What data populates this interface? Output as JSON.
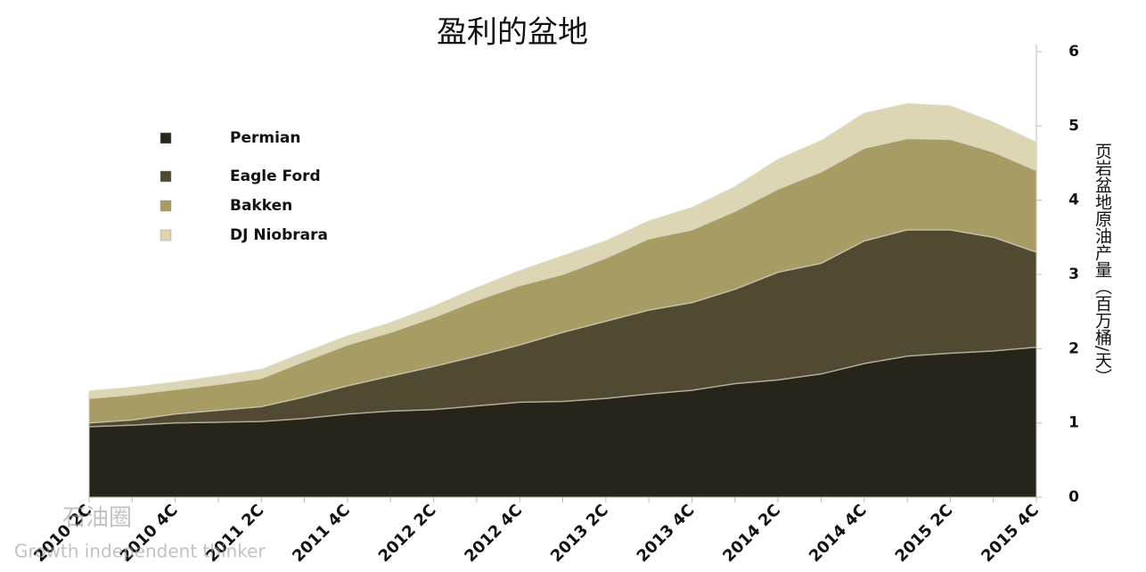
{
  "chart_data": {
    "type": "stacked_area",
    "title": "盈利的盆地",
    "y_axis_label": "页岩盆地原油产量（百万桶/天）",
    "categories": [
      "2010 2C",
      null,
      "2010 4C",
      null,
      "2011 2C",
      null,
      "2011 4C",
      null,
      "2012 2C",
      null,
      "2012 4C",
      null,
      "2013 2C",
      null,
      "2013 4C",
      null,
      "2014 2C",
      null,
      "2014 4C",
      null,
      "2015 2C",
      null,
      "2015 4C"
    ],
    "series": [
      {
        "name": "Permian",
        "color": "#27241a",
        "values": [
          0.95,
          0.97,
          1.0,
          1.01,
          1.02,
          1.06,
          1.12,
          1.16,
          1.18,
          1.23,
          1.28,
          1.29,
          1.33,
          1.39,
          1.44,
          1.53,
          1.58,
          1.66,
          1.8,
          1.9,
          1.94,
          1.97,
          2.02
        ]
      },
      {
        "name": "Eagle Ford",
        "color": "#504a33",
        "values": [
          0.05,
          0.07,
          0.12,
          0.16,
          0.2,
          0.29,
          0.38,
          0.47,
          0.58,
          0.67,
          0.77,
          0.93,
          1.04,
          1.13,
          1.18,
          1.27,
          1.45,
          1.49,
          1.65,
          1.7,
          1.66,
          1.53,
          1.28
        ]
      },
      {
        "name": "Bakken",
        "color": "#a69c64",
        "values": [
          0.33,
          0.34,
          0.33,
          0.35,
          0.38,
          0.48,
          0.55,
          0.59,
          0.66,
          0.75,
          0.8,
          0.78,
          0.85,
          0.96,
          0.98,
          1.05,
          1.12,
          1.23,
          1.25,
          1.23,
          1.22,
          1.15,
          1.1
        ]
      },
      {
        "name": "DJ Niobrara",
        "color": "#ddd6b4",
        "values": [
          0.1,
          0.1,
          0.1,
          0.11,
          0.12,
          0.12,
          0.12,
          0.13,
          0.15,
          0.17,
          0.2,
          0.25,
          0.23,
          0.24,
          0.3,
          0.33,
          0.4,
          0.42,
          0.47,
          0.47,
          0.45,
          0.4,
          0.38
        ]
      }
    ],
    "ylim": [
      0,
      6
    ],
    "yticks": [
      0,
      1,
      2,
      3,
      4,
      5,
      6
    ],
    "y_axis_side": "right",
    "legend": "upper-left",
    "watermark": [
      "石油圈",
      "Growth independent thinker"
    ]
  }
}
